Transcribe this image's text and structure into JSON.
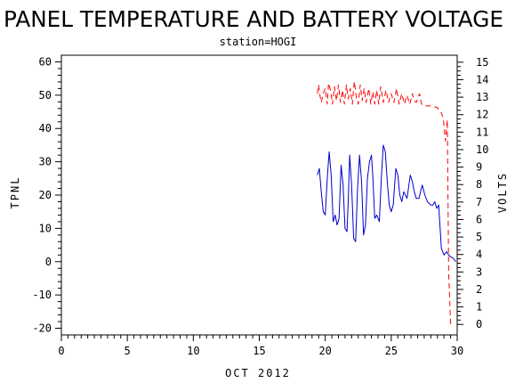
{
  "chart_data": {
    "type": "line",
    "title": "PANEL TEMPERATURE AND BATTERY VOLTAGE",
    "subtitle": "station=HOGI",
    "xlabel": "OCT 2012",
    "ylabel_left": "TPNL",
    "ylabel_right": "VOLTS",
    "xlim": [
      0,
      30
    ],
    "ylim_left": [
      -22,
      62
    ],
    "ylim_right": [
      -0.6,
      15.4
    ],
    "x_ticks": [
      0,
      5,
      10,
      15,
      20,
      25,
      30
    ],
    "y_ticks_left": [
      -20,
      -10,
      0,
      10,
      20,
      30,
      40,
      50,
      60
    ],
    "y_ticks_right": [
      0,
      1,
      2,
      3,
      4,
      5,
      6,
      7,
      8,
      9,
      10,
      11,
      12,
      13,
      14,
      15
    ],
    "series": [
      {
        "axis": "left",
        "color": "#0000cc",
        "dash": "solid",
        "points": [
          [
            19.4,
            26
          ],
          [
            19.55,
            28
          ],
          [
            19.7,
            21
          ],
          [
            19.85,
            15
          ],
          [
            20.0,
            14
          ],
          [
            20.15,
            25
          ],
          [
            20.3,
            33
          ],
          [
            20.45,
            26
          ],
          [
            20.6,
            12
          ],
          [
            20.75,
            14
          ],
          [
            20.9,
            11
          ],
          [
            21.05,
            13
          ],
          [
            21.2,
            29
          ],
          [
            21.35,
            23
          ],
          [
            21.5,
            10
          ],
          [
            21.65,
            9
          ],
          [
            21.75,
            19
          ],
          [
            21.85,
            32
          ],
          [
            22.0,
            23
          ],
          [
            22.15,
            7
          ],
          [
            22.3,
            6
          ],
          [
            22.45,
            22
          ],
          [
            22.6,
            32
          ],
          [
            22.75,
            24
          ],
          [
            22.9,
            8
          ],
          [
            23.05,
            11
          ],
          [
            23.2,
            25
          ],
          [
            23.35,
            30
          ],
          [
            23.5,
            32
          ],
          [
            23.6,
            26
          ],
          [
            23.75,
            13
          ],
          [
            23.9,
            14
          ],
          [
            24.1,
            12
          ],
          [
            24.25,
            25
          ],
          [
            24.4,
            35
          ],
          [
            24.55,
            33
          ],
          [
            24.7,
            24
          ],
          [
            24.85,
            17
          ],
          [
            25.0,
            15
          ],
          [
            25.15,
            17
          ],
          [
            25.35,
            28
          ],
          [
            25.5,
            26
          ],
          [
            25.65,
            20
          ],
          [
            25.8,
            18
          ],
          [
            25.95,
            21
          ],
          [
            26.2,
            19
          ],
          [
            26.45,
            26
          ],
          [
            26.6,
            24
          ],
          [
            26.75,
            21
          ],
          [
            26.9,
            19
          ],
          [
            27.1,
            19
          ],
          [
            27.35,
            23
          ],
          [
            27.55,
            20
          ],
          [
            27.75,
            18
          ],
          [
            28.0,
            17
          ],
          [
            28.15,
            17
          ],
          [
            28.3,
            18
          ],
          [
            28.45,
            16
          ],
          [
            28.6,
            17
          ],
          [
            28.8,
            4
          ],
          [
            29.0,
            2
          ],
          [
            29.2,
            3
          ],
          [
            29.35,
            2
          ],
          [
            29.5,
            1.5
          ],
          [
            29.7,
            1
          ],
          [
            29.9,
            0
          ]
        ]
      },
      {
        "axis": "right",
        "color": "#ff0000",
        "dash": "dashed",
        "points": [
          [
            19.4,
            13.2
          ],
          [
            19.5,
            13.7
          ],
          [
            19.6,
            13.1
          ],
          [
            19.7,
            12.7
          ],
          [
            19.85,
            13.2
          ],
          [
            20.0,
            13.5
          ],
          [
            20.15,
            12.6
          ],
          [
            20.25,
            13.8
          ],
          [
            20.4,
            13.4
          ],
          [
            20.55,
            12.6
          ],
          [
            20.7,
            13.6
          ],
          [
            20.85,
            12.8
          ],
          [
            21.0,
            13.7
          ],
          [
            21.15,
            12.7
          ],
          [
            21.3,
            13.4
          ],
          [
            21.45,
            12.6
          ],
          [
            21.6,
            13.7
          ],
          [
            21.75,
            12.9
          ],
          [
            21.9,
            13.5
          ],
          [
            22.05,
            12.6
          ],
          [
            22.2,
            13.9
          ],
          [
            22.35,
            13.0
          ],
          [
            22.5,
            12.6
          ],
          [
            22.65,
            13.7
          ],
          [
            22.8,
            12.8
          ],
          [
            22.95,
            13.5
          ],
          [
            23.1,
            12.7
          ],
          [
            23.3,
            13.5
          ],
          [
            23.45,
            12.6
          ],
          [
            23.6,
            13.3
          ],
          [
            23.75,
            12.6
          ],
          [
            23.9,
            13.4
          ],
          [
            24.05,
            12.6
          ],
          [
            24.2,
            13.6
          ],
          [
            24.4,
            12.7
          ],
          [
            24.6,
            13.4
          ],
          [
            24.8,
            12.7
          ],
          [
            25.0,
            13.2
          ],
          [
            25.2,
            12.7
          ],
          [
            25.4,
            13.5
          ],
          [
            25.6,
            12.6
          ],
          [
            25.8,
            13.2
          ],
          [
            26.0,
            12.6
          ],
          [
            26.2,
            13.1
          ],
          [
            26.4,
            12.6
          ],
          [
            26.6,
            13.2
          ],
          [
            26.75,
            12.8
          ],
          [
            26.9,
            12.7
          ],
          [
            27.15,
            13.2
          ],
          [
            27.3,
            12.6
          ],
          [
            27.6,
            12.5
          ],
          [
            28.1,
            12.5
          ],
          [
            28.5,
            12.4
          ],
          [
            28.8,
            12.1
          ],
          [
            28.95,
            11.8
          ],
          [
            29.1,
            10.5
          ],
          [
            29.25,
            11.7
          ],
          [
            29.35,
            3.0
          ],
          [
            29.5,
            0.0
          ]
        ]
      }
    ]
  }
}
